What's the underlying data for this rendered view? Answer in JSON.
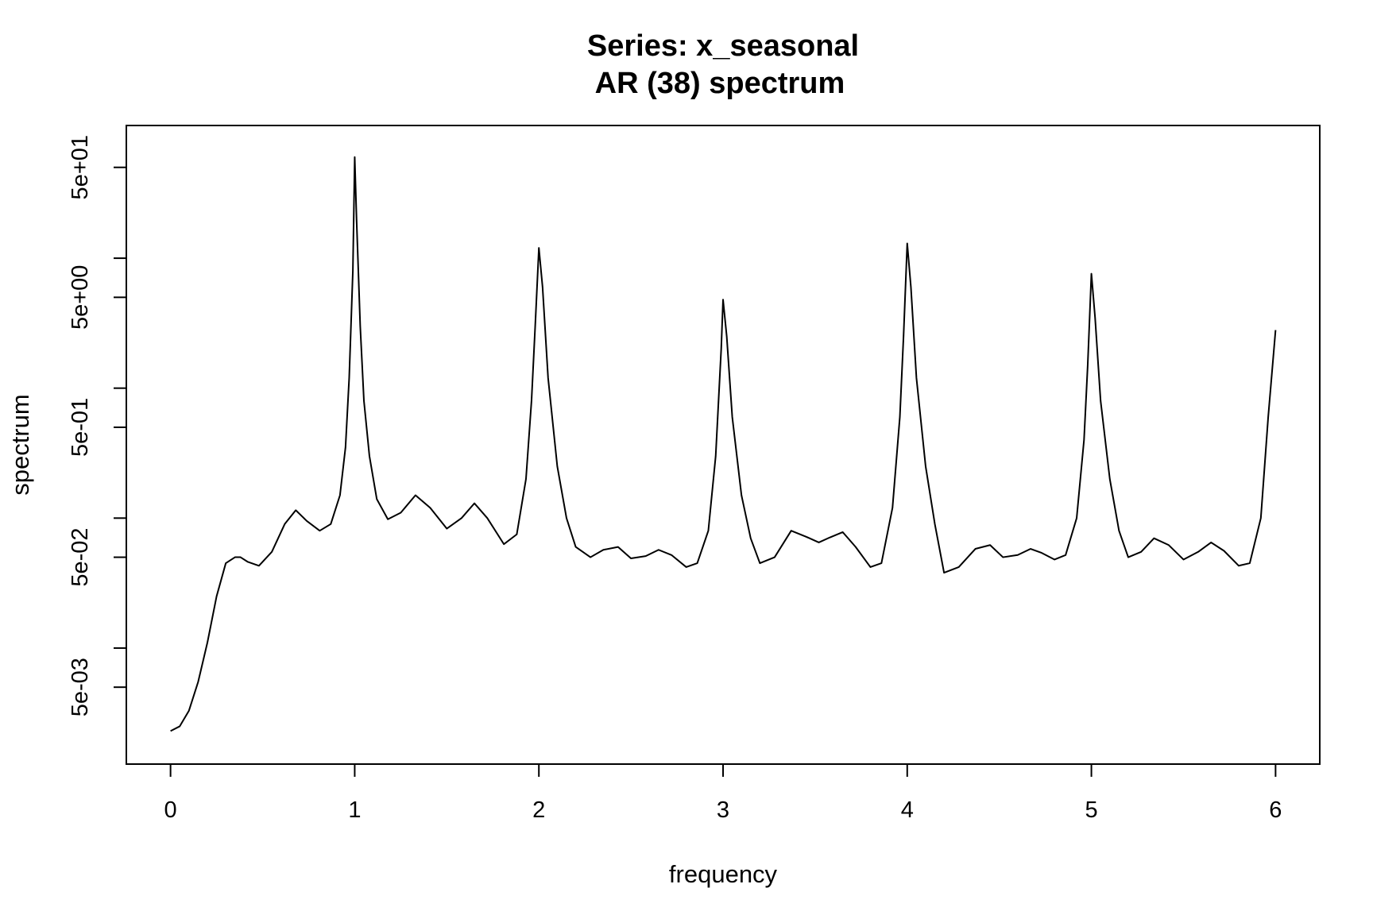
{
  "chart_data": {
    "type": "line",
    "title": "Series: x_seasonal",
    "subtitle": "AR (38) spectrum",
    "xlabel": "frequency",
    "ylabel": "spectrum",
    "xlim": [
      -0.24,
      6.24
    ],
    "ylim": [
      0.00128,
      105
    ],
    "y_scale": "log",
    "x_ticks": [
      {
        "value": 0,
        "label": "0"
      },
      {
        "value": 1,
        "label": "1"
      },
      {
        "value": 2,
        "label": "2"
      },
      {
        "value": 3,
        "label": "3"
      },
      {
        "value": 4,
        "label": "4"
      },
      {
        "value": 5,
        "label": "5"
      },
      {
        "value": 6,
        "label": "6"
      }
    ],
    "y_ticks_labeled": [
      {
        "value": 0.005,
        "label": "5e-03"
      },
      {
        "value": 0.05,
        "label": "5e-02"
      },
      {
        "value": 0.5,
        "label": "5e-01"
      },
      {
        "value": 5,
        "label": "5e+00"
      },
      {
        "value": 50,
        "label": "5e+01"
      }
    ],
    "y_ticks_minor": [
      0.01,
      0.1,
      1,
      10
    ],
    "grid": false,
    "series": [
      {
        "x": [
          0,
          0.05,
          0.1,
          0.15,
          0.2,
          0.25,
          0.3,
          0.35,
          0.38,
          0.42,
          0.48,
          0.55,
          0.62,
          0.68,
          0.74,
          0.81,
          0.87,
          0.92,
          0.95,
          0.97,
          0.99,
          1.0,
          1.01,
          1.03,
          1.05,
          1.08,
          1.12,
          1.18,
          1.25,
          1.33,
          1.41,
          1.5,
          1.58,
          1.65,
          1.72,
          1.81,
          1.88,
          1.93,
          1.96,
          1.98,
          2.0,
          2.02,
          2.05,
          2.1,
          2.15,
          2.2,
          2.28,
          2.35,
          2.43,
          2.5,
          2.58,
          2.65,
          2.72,
          2.8,
          2.86,
          2.92,
          2.96,
          2.99,
          3.0,
          3.02,
          3.05,
          3.1,
          3.15,
          3.2,
          3.28,
          3.37,
          3.45,
          3.52,
          3.58,
          3.65,
          3.72,
          3.8,
          3.86,
          3.92,
          3.96,
          3.98,
          4.0,
          4.02,
          4.05,
          4.1,
          4.15,
          4.2,
          4.28,
          4.37,
          4.45,
          4.52,
          4.6,
          4.67,
          4.73,
          4.8,
          4.86,
          4.92,
          4.96,
          4.98,
          5.0,
          5.02,
          5.05,
          5.1,
          5.15,
          5.2,
          5.27,
          5.34,
          5.42,
          5.5,
          5.58,
          5.65,
          5.72,
          5.8,
          5.86,
          5.92,
          5.96,
          6.0
        ],
        "y": [
          0.0023,
          0.0025,
          0.0033,
          0.0055,
          0.011,
          0.025,
          0.045,
          0.05,
          0.05,
          0.046,
          0.043,
          0.055,
          0.09,
          0.115,
          0.095,
          0.08,
          0.09,
          0.15,
          0.35,
          1.2,
          8,
          60,
          20,
          3,
          0.8,
          0.3,
          0.14,
          0.098,
          0.11,
          0.15,
          0.12,
          0.083,
          0.1,
          0.13,
          0.1,
          0.063,
          0.075,
          0.2,
          0.8,
          3,
          12,
          6,
          1.2,
          0.25,
          0.1,
          0.06,
          0.05,
          0.057,
          0.06,
          0.049,
          0.051,
          0.057,
          0.052,
          0.042,
          0.045,
          0.08,
          0.3,
          2,
          4.8,
          2.5,
          0.6,
          0.15,
          0.07,
          0.045,
          0.05,
          0.08,
          0.072,
          0.065,
          0.071,
          0.078,
          0.06,
          0.042,
          0.045,
          0.12,
          0.6,
          2.5,
          13,
          6,
          1.2,
          0.25,
          0.09,
          0.038,
          0.042,
          0.058,
          0.062,
          0.05,
          0.052,
          0.058,
          0.054,
          0.048,
          0.052,
          0.1,
          0.4,
          1.5,
          7.6,
          3.5,
          0.8,
          0.2,
          0.08,
          0.05,
          0.055,
          0.07,
          0.062,
          0.048,
          0.055,
          0.065,
          0.056,
          0.043,
          0.045,
          0.1,
          0.6,
          2.8
        ]
      }
    ]
  }
}
